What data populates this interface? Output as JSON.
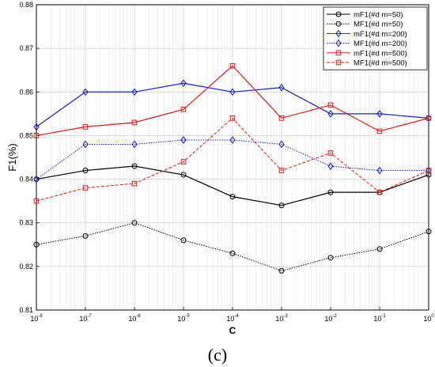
{
  "chart_data": {
    "type": "line",
    "x": [
      "1e-8",
      "1e-7",
      "1e-6",
      "1e-5",
      "1e-4",
      "1e-3",
      "1e-2",
      "1e-1",
      "1e0"
    ],
    "x_scale": "log",
    "x_tick_bases": [
      "10",
      "10",
      "10",
      "10",
      "10",
      "10",
      "10",
      "10",
      "10"
    ],
    "x_tick_exponents": [
      "-8",
      "-7",
      "-6",
      "-5",
      "-4",
      "-3",
      "-2",
      "-1",
      "0"
    ],
    "xlabel": "C",
    "ylabel": "F1(%)",
    "ylim": [
      0.81,
      0.88
    ],
    "y_ticks": [
      "0.81",
      "0.82",
      "0.83",
      "0.84",
      "0.85",
      "0.86",
      "0.87",
      "0.88"
    ],
    "grid": true,
    "legend_position": "top-right",
    "series": [
      {
        "name": "mF1(#d m=50)",
        "color": "#000000",
        "dash": "solid",
        "marker": "circle",
        "values": [
          0.84,
          0.842,
          0.843,
          0.841,
          0.836,
          0.834,
          0.837,
          0.837,
          0.841
        ]
      },
      {
        "name": "MF1(#d m=50)",
        "color": "#000000",
        "dash": "dotted",
        "marker": "circle",
        "values": [
          0.825,
          0.827,
          0.83,
          0.826,
          0.823,
          0.819,
          0.822,
          0.824,
          0.828
        ]
      },
      {
        "name": "mF1(#d m=200)",
        "color": "#1a1acc",
        "dash": "solid",
        "marker": "diamond",
        "values": [
          0.852,
          0.86,
          0.86,
          0.862,
          0.86,
          0.861,
          0.855,
          0.855,
          0.854
        ]
      },
      {
        "name": "MF1(#d m=200)",
        "color": "#1a1acc",
        "dash": "dotted",
        "marker": "diamond",
        "values": [
          0.84,
          0.848,
          0.848,
          0.849,
          0.849,
          0.848,
          0.843,
          0.842,
          0.842
        ]
      },
      {
        "name": "mF1(#d m=500)",
        "color": "#dd1a1a",
        "dash": "solid",
        "marker": "square",
        "values": [
          0.85,
          0.852,
          0.853,
          0.856,
          0.866,
          0.854,
          0.857,
          0.851,
          0.854
        ]
      },
      {
        "name": "MF1(#d m=500)",
        "color": "#dd1a1a",
        "dash": "dashed",
        "marker": "square",
        "values": [
          0.835,
          0.838,
          0.839,
          0.844,
          0.854,
          0.842,
          0.846,
          0.837,
          0.842
        ]
      }
    ]
  },
  "caption": "(c)"
}
